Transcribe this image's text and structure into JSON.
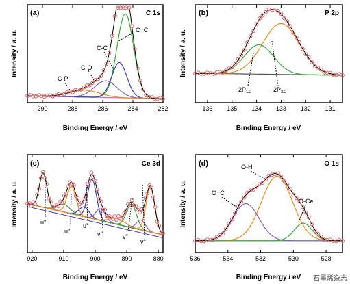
{
  "chart_data": [
    {
      "type": "line",
      "panel": "(a)",
      "tag": "C 1s",
      "xlabel": "Binding Energy / eV",
      "ylabel": "Intensity / a. u.",
      "xlim": [
        291,
        282
      ],
      "xticks": [
        290,
        288,
        286,
        284,
        282
      ],
      "annotations": [
        "C-P",
        "C-O",
        "C-C",
        "C=C"
      ],
      "colors": {
        "envelope": "#000000",
        "circles": "#e0676c",
        "C=C": "#3aa83a",
        "C-C": "#3a3ab4",
        "C-O": "#8a5cc8",
        "C-P": "#f08a24",
        "background": "#e060e0"
      }
    },
    {
      "type": "line",
      "panel": "(b)",
      "tag": "P 2p",
      "xlabel": "Binding Energy / eV",
      "ylabel": "Intensity / a. u.",
      "xlim": [
        136.5,
        130.5
      ],
      "xticks": [
        136,
        135,
        134,
        133,
        132,
        131
      ],
      "annotations": [
        "2P",
        "1/2",
        "2P",
        "3/2"
      ],
      "colors": {
        "envelope": "#000000",
        "circles": "#e0676c",
        "2P1/2": "#3aa83a",
        "2P3/2": "#f08a24",
        "background": "#555555"
      }
    },
    {
      "type": "line",
      "panel": "(c)",
      "tag": "Ce 3d",
      "xlabel": "Binding Energy / eV",
      "ylabel": "Intensity / a. u.",
      "xlim": [
        921.5,
        878.5
      ],
      "xticks": [
        920,
        910,
        900,
        890,
        880
      ],
      "annotations": [
        "u'''",
        "u''",
        "u°",
        "v'''",
        "v''",
        "v°"
      ],
      "colors": {
        "envelope": "#000000",
        "circles": "#e0676c",
        "components": [
          "#3aa83a",
          "#f08a24",
          "#3a3ab4",
          "#8a5cc8"
        ],
        "background": "#e0307a"
      }
    },
    {
      "type": "line",
      "panel": "(d)",
      "tag": "O 1s",
      "xlabel": "Binding Energy / eV",
      "ylabel": "Intensity / a. u.",
      "xlim": [
        536,
        527
      ],
      "xticks": [
        536,
        534,
        532,
        530,
        528
      ],
      "annotations": [
        "O=C",
        "O-H",
        "O-Ce"
      ],
      "colors": {
        "envelope": "#000000",
        "circles": "#e0676c",
        "O=C": "#8a5cc8",
        "O-H": "#f08a24",
        "O-Ce": "#3aa83a",
        "background": "#3aa83a"
      }
    }
  ],
  "watermark": "石墨烯杂志"
}
